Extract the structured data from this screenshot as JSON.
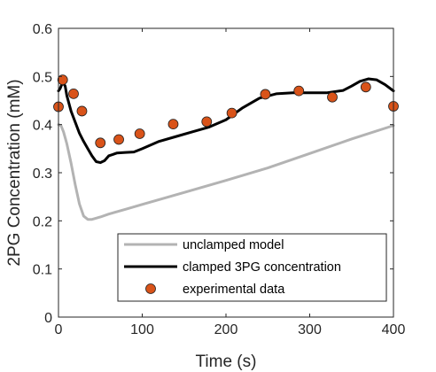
{
  "chart_data": {
    "type": "line",
    "xlabel": "Time (s)",
    "ylabel": "2PG Concentration (mM)",
    "xlim": [
      0,
      400
    ],
    "ylim": [
      0,
      0.6
    ],
    "xticks": [
      0,
      100,
      200,
      300,
      400
    ],
    "xtick_labels": [
      "0",
      "100",
      "200",
      "300",
      "400"
    ],
    "yticks": [
      0,
      0.1,
      0.2,
      0.3,
      0.4,
      0.5,
      0.6
    ],
    "ytick_labels": [
      "0",
      "0.1",
      "0.2",
      "0.3",
      "0.4",
      "0.5",
      "0.6"
    ],
    "grid": false,
    "legend_position": "bottom-right",
    "series": [
      {
        "name": "unclamped model",
        "kind": "line",
        "color": "#b3b3b3",
        "x": [
          0,
          3,
          6,
          10,
          15,
          20,
          25,
          30,
          35,
          40,
          50,
          60,
          80,
          100,
          150,
          200,
          250,
          300,
          350,
          400
        ],
        "y": [
          0.4,
          0.398,
          0.385,
          0.36,
          0.32,
          0.275,
          0.235,
          0.21,
          0.203,
          0.203,
          0.208,
          0.214,
          0.224,
          0.234,
          0.259,
          0.284,
          0.31,
          0.34,
          0.37,
          0.398
        ]
      },
      {
        "name": "clamped 3PG concentration",
        "kind": "line",
        "color": "#000000",
        "x": [
          0,
          2,
          5,
          8,
          10,
          15,
          20,
          25,
          30,
          35,
          40,
          45,
          50,
          55,
          60,
          70,
          80,
          90,
          100,
          120,
          140,
          160,
          180,
          200,
          220,
          240,
          260,
          280,
          300,
          320,
          340,
          350,
          360,
          370,
          380,
          390,
          400
        ],
        "y": [
          0.47,
          0.475,
          0.488,
          0.48,
          0.46,
          0.428,
          0.405,
          0.382,
          0.365,
          0.35,
          0.335,
          0.323,
          0.321,
          0.325,
          0.335,
          0.341,
          0.342,
          0.343,
          0.35,
          0.365,
          0.375,
          0.385,
          0.395,
          0.41,
          0.435,
          0.455,
          0.464,
          0.466,
          0.466,
          0.466,
          0.471,
          0.48,
          0.49,
          0.495,
          0.493,
          0.483,
          0.47
        ]
      },
      {
        "name": "experimental data",
        "kind": "scatter",
        "color": "#d95319",
        "x": [
          0,
          5,
          18,
          28,
          50,
          72,
          97,
          137,
          177,
          207,
          247,
          287,
          327,
          367,
          400
        ],
        "y": [
          0.437,
          0.493,
          0.464,
          0.428,
          0.362,
          0.369,
          0.381,
          0.401,
          0.406,
          0.424,
          0.463,
          0.47,
          0.457,
          0.478,
          0.438
        ]
      }
    ]
  }
}
